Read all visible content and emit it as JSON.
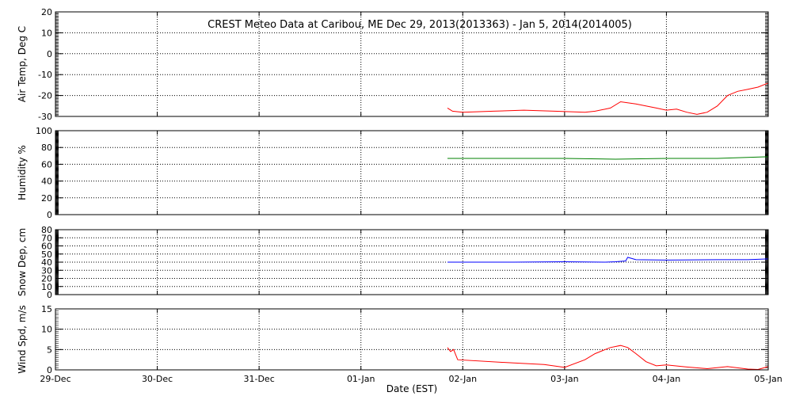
{
  "chart_data": [
    {
      "type": "line",
      "title": "CREST Meteo Data at Caribou, ME   Dec 29, 2013(2013363) - Jan  5, 2014(2014005)",
      "ylabel": "Air Temp, Deg C",
      "ylim": [
        -30,
        20
      ],
      "yticks": [
        -30,
        -20,
        -10,
        0,
        10,
        20
      ],
      "color": "#ff0000",
      "x": [
        3.85,
        3.9,
        4.0,
        4.3,
        4.6,
        4.9,
        5.2,
        5.3,
        5.45,
        5.55,
        5.7,
        5.9,
        6.0,
        6.1,
        6.2,
        6.3,
        6.4,
        6.5,
        6.6,
        6.7,
        6.8,
        6.9,
        7.0
      ],
      "values": [
        -26,
        -27.5,
        -28,
        -27.5,
        -27,
        -27.5,
        -28,
        -27.5,
        -26,
        -23,
        -24,
        -26,
        -27,
        -26.5,
        -28,
        -29,
        -28,
        -25,
        -20,
        -18,
        -17,
        -16,
        -14
      ]
    },
    {
      "type": "line",
      "ylabel": "Humidity %",
      "ylim": [
        0,
        100
      ],
      "yticks": [
        0,
        20,
        40,
        60,
        80,
        100
      ],
      "color": "#008000",
      "x": [
        3.85,
        4.5,
        5.0,
        5.5,
        6.0,
        6.5,
        7.0
      ],
      "values": [
        67,
        67,
        67,
        66,
        67,
        67,
        69
      ]
    },
    {
      "type": "line",
      "ylabel": "Snow Dep, cm",
      "ylim": [
        0,
        80
      ],
      "yticks": [
        0,
        10,
        20,
        30,
        40,
        50,
        60,
        70,
        80
      ],
      "color": "#0000ff",
      "x": [
        3.85,
        4.5,
        5.0,
        5.4,
        5.5,
        5.6,
        5.62,
        5.7,
        6.0,
        6.5,
        6.8,
        7.0
      ],
      "values": [
        40,
        40,
        40.5,
        40,
        40.5,
        41.5,
        46,
        43,
        42.5,
        43,
        43,
        44
      ]
    },
    {
      "type": "line",
      "ylabel": "Wind Spd, m/s",
      "xlabel": "Date (EST)",
      "ylim": [
        0,
        15
      ],
      "yticks": [
        0,
        5,
        10,
        15
      ],
      "color": "#ff0000",
      "x": [
        3.85,
        3.88,
        3.91,
        3.95,
        4.5,
        4.8,
        5.0,
        5.2,
        5.3,
        5.4,
        5.45,
        5.55,
        5.62,
        5.7,
        5.8,
        5.9,
        6.0,
        6.2,
        6.4,
        6.6,
        6.8,
        6.9,
        7.0
      ],
      "values": [
        5.5,
        4.5,
        5,
        2.5,
        1.7,
        1.3,
        0.6,
        2.5,
        4,
        5,
        5.5,
        6,
        5.5,
        4,
        2,
        1,
        1.2,
        0.7,
        0.3,
        0.8,
        0.2,
        0.1,
        0.8
      ]
    }
  ],
  "x_axis": {
    "labels": [
      "29-Dec",
      "30-Dec",
      "31-Dec",
      "01-Jan",
      "02-Jan",
      "03-Jan",
      "04-Jan",
      "05-Jan"
    ],
    "xlabel": "Date (EST)",
    "xlim": [
      0,
      7
    ]
  },
  "grid": true
}
